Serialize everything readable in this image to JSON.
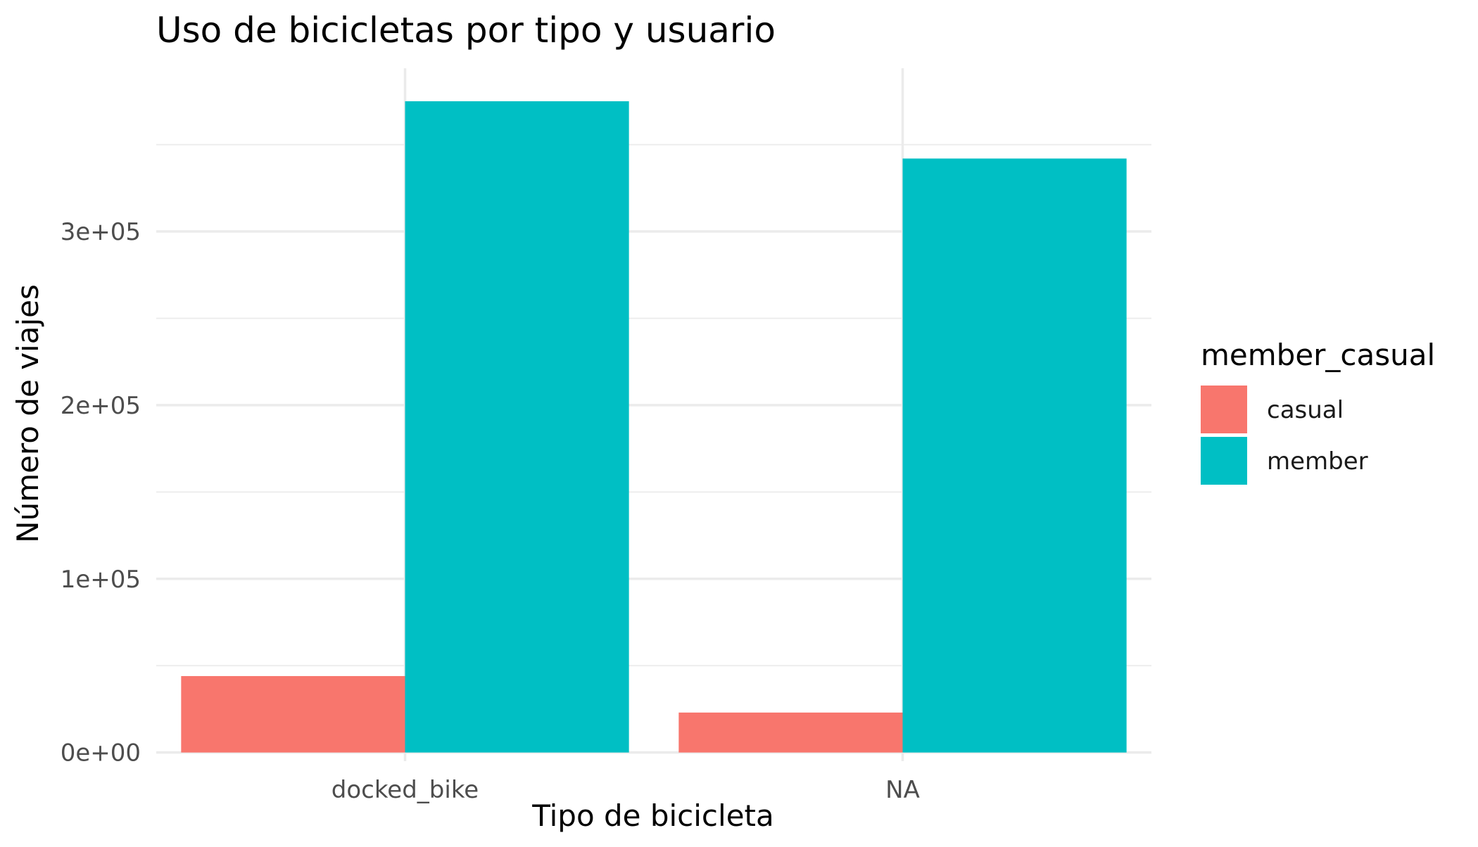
{
  "chart_data": {
    "type": "bar",
    "title": "Uso de bicicletas por tipo y usuario",
    "xlabel": "Tipo de bicicleta",
    "ylabel": "Número de viajes",
    "categories": [
      "docked_bike",
      "NA"
    ],
    "series": [
      {
        "name": "casual",
        "values": [
          44000,
          23000
        ],
        "color": "#F8766D"
      },
      {
        "name": "member",
        "values": [
          375000,
          342000
        ],
        "color": "#00BFC4"
      }
    ],
    "ylim": [
      -5000,
      394000
    ],
    "yticks": [
      0,
      100000,
      200000,
      300000
    ],
    "ytick_labels": [
      "0e+00",
      "1e+05",
      "2e+05",
      "3e+05"
    ],
    "grid": true,
    "legend": {
      "title": "member_casual",
      "position": "right",
      "entries": [
        "casual",
        "member"
      ]
    }
  }
}
